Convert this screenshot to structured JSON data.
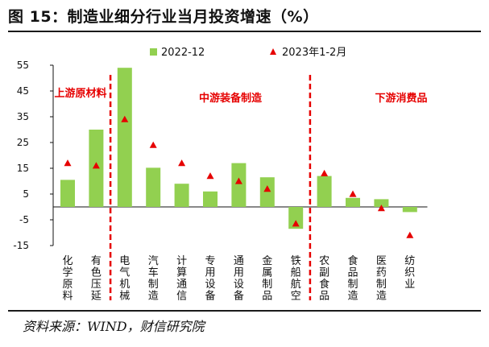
{
  "header": {
    "title": "图 15：制造业细分行业当月投资增速（%）"
  },
  "footer": {
    "source": "资料来源：WIND，财信研究院"
  },
  "colors": {
    "bar": "#92d050",
    "marker": "#e60000",
    "divider": "#e60000",
    "zone_label": "#e60000",
    "axis": "#111111"
  },
  "chart_data": {
    "type": "bar",
    "categories": [
      "化学原料",
      "有色压延",
      "电气机械",
      "汽车制造",
      "计算通信",
      "专用设备",
      "通用设备",
      "金属制品",
      "铁船航空",
      "农副食品",
      "食品制造",
      "医药制造",
      "纺织业"
    ],
    "series": [
      {
        "name": "2022-12",
        "type": "bar",
        "values": [
          10.5,
          30,
          54,
          15.2,
          9,
          6,
          17,
          11.5,
          -8.5,
          12,
          3.5,
          3,
          -2
        ]
      },
      {
        "name": "2023年1-2月",
        "type": "marker",
        "values": [
          17,
          16,
          34,
          24,
          17,
          12,
          10,
          7,
          -6.5,
          13,
          5,
          -0.5,
          -11
        ]
      }
    ],
    "ylim": [
      -15,
      55
    ],
    "yticks": [
      -15,
      -5,
      5,
      15,
      25,
      35,
      45,
      55
    ],
    "ytick_labels": [
      "-15",
      "-5",
      "5",
      "15",
      "25",
      "35",
      "45",
      "55"
    ],
    "legend_position": "top",
    "grid": false,
    "zones": [
      {
        "label": "上游原材料",
        "divider_after_category": 1
      },
      {
        "label": "中游装备制造",
        "divider_after_category": 8
      },
      {
        "label": "下游消费品"
      }
    ]
  }
}
